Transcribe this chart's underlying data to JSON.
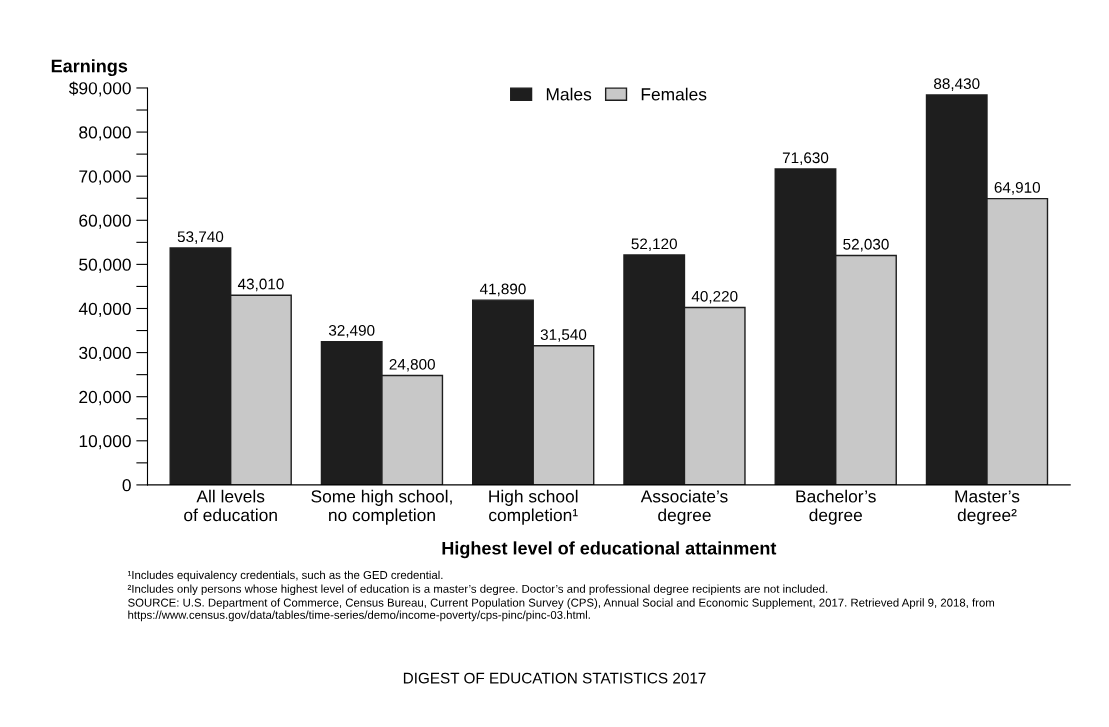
{
  "chart_data": {
    "type": "bar",
    "ylabel": "Earnings",
    "xlabel": "Highest level of educational attainment",
    "categories": [
      "All levels\nof education",
      "Some high school,\nno completion",
      "High school\ncompletion¹",
      "Associate’s\ndegree",
      "Bachelor’s\ndegree",
      "Master’s\ndegree²"
    ],
    "series": [
      {
        "name": "Males",
        "color": "#1e1e1e",
        "values": [
          53740,
          32490,
          41890,
          52120,
          71630,
          88430
        ],
        "value_labels": [
          "53,740",
          "32,490",
          "41,890",
          "52,120",
          "71,630",
          "88,430"
        ]
      },
      {
        "name": "Females",
        "color": "#c8c8c8",
        "values": [
          43010,
          24800,
          31540,
          40220,
          52030,
          64910
        ],
        "value_labels": [
          "43,010",
          "24,800",
          "31,540",
          "40,220",
          "52,030",
          "64,910"
        ]
      }
    ],
    "ylim": [
      0,
      90000
    ],
    "yticks": [
      {
        "value": 0,
        "label": "0"
      },
      {
        "value": 5000,
        "label": null
      },
      {
        "value": 10000,
        "label": "10,000"
      },
      {
        "value": 15000,
        "label": null
      },
      {
        "value": 20000,
        "label": "20,000"
      },
      {
        "value": 25000,
        "label": null
      },
      {
        "value": 30000,
        "label": "30,000"
      },
      {
        "value": 35000,
        "label": null
      },
      {
        "value": 40000,
        "label": "40,000"
      },
      {
        "value": 45000,
        "label": null
      },
      {
        "value": 50000,
        "label": "50,000"
      },
      {
        "value": 55000,
        "label": null
      },
      {
        "value": 60000,
        "label": "60,000"
      },
      {
        "value": 65000,
        "label": null
      },
      {
        "value": 70000,
        "label": "70,000"
      },
      {
        "value": 75000,
        "label": null
      },
      {
        "value": 80000,
        "label": "80,000"
      },
      {
        "value": 85000,
        "label": null
      },
      {
        "value": 90000,
        "label": "$90,000"
      }
    ],
    "grid": false,
    "legend": "top",
    "annotations": [
      "¹Includes equivalency credentials, such as the GED credential.",
      "²Includes only persons whose highest level of education is a master’s degree. Doctor’s and professional degree recipients are not included.",
      "SOURCE: U.S. Department of Commerce, Census Bureau, Current Population Survey (CPS), Annual Social and Economic Supplement, 2017. Retrieved April 9, 2018, from https://www.census.gov/data/tables/time-series/demo/income-poverty/cps-pinc/pinc-03.html.",
      "DIGEST OF EDUCATION STATISTICS 2017"
    ]
  }
}
